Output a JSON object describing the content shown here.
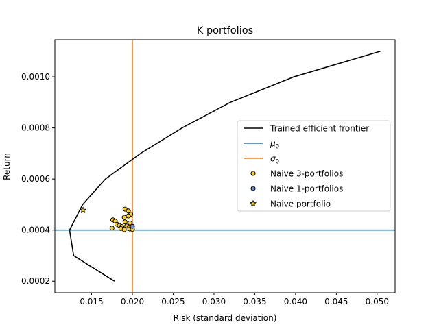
{
  "chart_data": {
    "type": "line",
    "title": "K portfolios",
    "xlabel": "Risk (standard deviation)",
    "ylabel": "Return",
    "xlim": [
      0.0105,
      0.0522
    ],
    "ylim": [
      0.000155,
      0.001145
    ],
    "xticks": [
      0.015,
      0.02,
      0.025,
      0.03,
      0.035,
      0.04,
      0.045,
      0.05
    ],
    "xtick_labels": [
      "0.015",
      "0.020",
      "0.025",
      "0.030",
      "0.035",
      "0.040",
      "0.045",
      "0.050"
    ],
    "yticks": [
      0.0002,
      0.0004,
      0.0006,
      0.0008,
      0.001
    ],
    "ytick_labels": [
      "0.0002",
      "0.0004",
      "0.0006",
      "0.0008",
      "0.0010"
    ],
    "grid": false,
    "legend_position": "center-right",
    "legend": [
      {
        "label": "Trained efficient frontier",
        "kind": "line",
        "color": "#000000"
      },
      {
        "label_main": "μ",
        "label_sub": "0",
        "kind": "line",
        "color": "#1f77b4"
      },
      {
        "label_main": "σ",
        "label_sub": "0",
        "kind": "line",
        "color": "#ff7f0e"
      },
      {
        "label": "Naive 3-portfolios",
        "kind": "circle",
        "color": "#ffd11a"
      },
      {
        "label": "Naive 1-portfolios",
        "kind": "circle",
        "color": "#6f8fd0"
      },
      {
        "label": "Naive portfolio",
        "kind": "star",
        "color": "#ffd11a"
      }
    ],
    "series": [
      {
        "name": "Trained efficient frontier",
        "color": "#000000",
        "x": [
          0.0178,
          0.0128,
          0.0123,
          0.0139,
          0.0167,
          0.021,
          0.0261,
          0.032,
          0.0398,
          0.0504
        ],
        "y": [
          0.0002,
          0.0003,
          0.0004,
          0.0005,
          0.0006,
          0.0007,
          0.0008,
          0.0009,
          0.001,
          0.0011
        ]
      }
    ],
    "mu0": 0.0004,
    "sigma0": 0.02,
    "naive_3_portfolios": [
      {
        "x": 0.0191,
        "y": 0.000482
      },
      {
        "x": 0.0195,
        "y": 0.000475
      },
      {
        "x": 0.0198,
        "y": 0.000462
      },
      {
        "x": 0.0195,
        "y": 0.000455
      },
      {
        "x": 0.019,
        "y": 0.00045
      },
      {
        "x": 0.0176,
        "y": 0.00044
      },
      {
        "x": 0.0179,
        "y": 0.000435
      },
      {
        "x": 0.0191,
        "y": 0.000432
      },
      {
        "x": 0.0197,
        "y": 0.000428
      },
      {
        "x": 0.0181,
        "y": 0.000423
      },
      {
        "x": 0.0184,
        "y": 0.000418
      },
      {
        "x": 0.0193,
        "y": 0.000416
      },
      {
        "x": 0.0187,
        "y": 0.000414
      },
      {
        "x": 0.0196,
        "y": 0.000412
      },
      {
        "x": 0.0199,
        "y": 0.00041
      },
      {
        "x": 0.0175,
        "y": 0.000408
      },
      {
        "x": 0.0186,
        "y": 0.000406
      },
      {
        "x": 0.019,
        "y": 0.000402
      },
      {
        "x": 0.0197,
        "y": 0.000404
      },
      {
        "x": 0.02,
        "y": 0.000403
      }
    ],
    "naive_1_portfolios": [
      {
        "x": 0.02,
        "y": 0.000415
      }
    ],
    "naive_portfolio": [
      {
        "x": 0.01395,
        "y": 0.000478
      }
    ]
  }
}
